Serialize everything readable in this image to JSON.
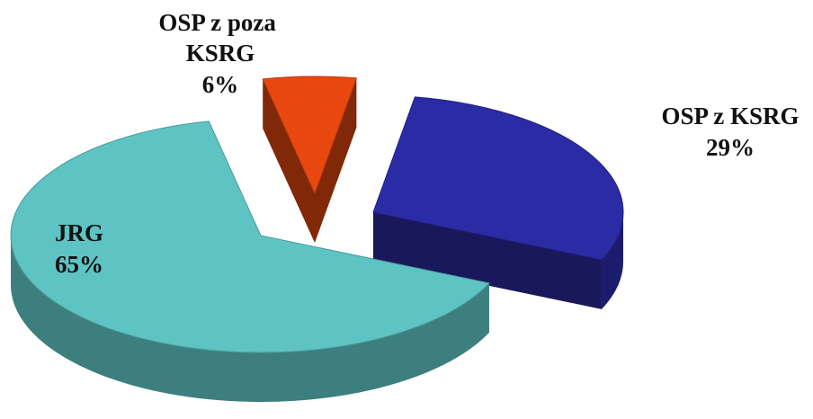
{
  "chart_data": {
    "type": "pie3d",
    "categories": [
      "JRG",
      "OSP z KSRG",
      "OSP z poza KSRG"
    ],
    "values": [
      65,
      29,
      6
    ],
    "value_labels": [
      "65%",
      "29%",
      "6%"
    ],
    "colors": [
      "#5ec3c3",
      "#2b2ba6",
      "#e8480f"
    ]
  }
}
